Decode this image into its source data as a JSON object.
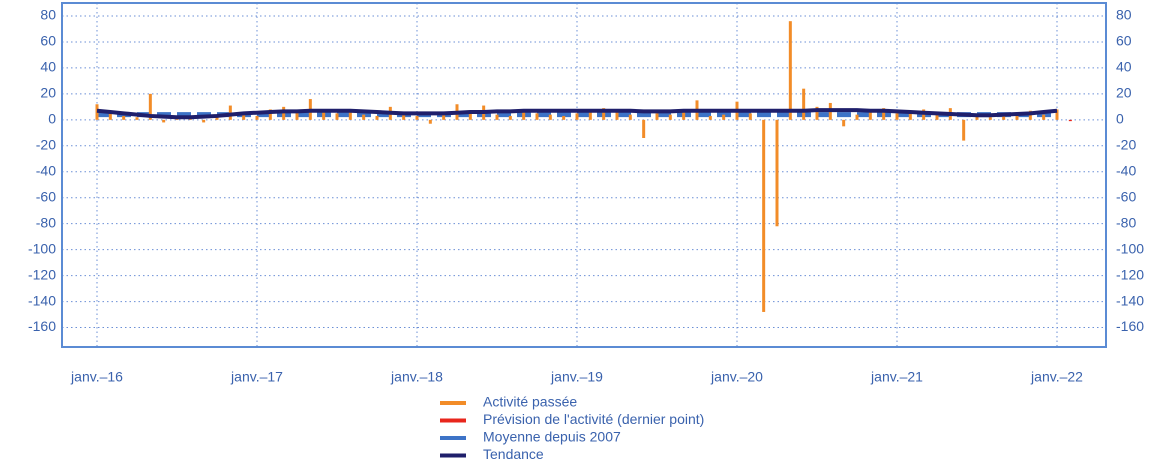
{
  "chart_data": {
    "type": "bar",
    "categories": [
      "janv.–16",
      null,
      null,
      null,
      null,
      null,
      null,
      null,
      null,
      null,
      null,
      null,
      "janv.–17",
      null,
      null,
      null,
      null,
      null,
      null,
      null,
      null,
      null,
      null,
      null,
      "janv.–18",
      null,
      null,
      null,
      null,
      null,
      null,
      null,
      null,
      null,
      null,
      null,
      "janv.–19",
      null,
      null,
      null,
      null,
      null,
      null,
      null,
      null,
      null,
      null,
      null,
      "janv.–20",
      null,
      null,
      null,
      null,
      null,
      null,
      null,
      null,
      null,
      null,
      null,
      "janv.–21",
      null,
      null,
      null,
      null,
      null,
      null,
      null,
      null,
      null,
      null,
      null,
      "janv.–22",
      null
    ],
    "series": [
      {
        "name": "Activité passée",
        "color": "#f28c28",
        "kind": "bar",
        "values": [
          12,
          5,
          3,
          2,
          20,
          -2,
          1,
          2,
          -2,
          3,
          11,
          4,
          3,
          8,
          10,
          6,
          16,
          6,
          5,
          8,
          4,
          3,
          10,
          5,
          3,
          -3,
          4,
          12,
          5,
          11,
          4,
          3,
          6,
          5,
          4,
          3,
          5,
          8,
          9,
          6,
          4,
          -14,
          5,
          4,
          6,
          15,
          3,
          4,
          14,
          5,
          -148,
          -82,
          76,
          24,
          10,
          13,
          -5,
          4,
          6,
          9,
          5,
          7,
          8,
          4,
          9,
          -16,
          3,
          2,
          3,
          3,
          7,
          4,
          8,
          null
        ]
      },
      {
        "name": "Prévision de l'activité (dernier point)",
        "color": "#e8261c",
        "kind": "bar",
        "values": [
          null,
          null,
          null,
          null,
          null,
          null,
          null,
          null,
          null,
          null,
          null,
          null,
          null,
          null,
          null,
          null,
          null,
          null,
          null,
          null,
          null,
          null,
          null,
          null,
          null,
          null,
          null,
          null,
          null,
          null,
          null,
          null,
          null,
          null,
          null,
          null,
          null,
          null,
          null,
          null,
          null,
          null,
          null,
          null,
          null,
          null,
          null,
          null,
          null,
          null,
          null,
          null,
          null,
          null,
          null,
          null,
          null,
          null,
          null,
          null,
          null,
          null,
          null,
          null,
          null,
          null,
          null,
          null,
          null,
          null,
          null,
          null,
          null,
          -1
        ]
      },
      {
        "name": "Moyenne depuis 2007",
        "color": "#3d73c7",
        "kind": "dashed",
        "values": [
          4,
          4,
          4,
          4,
          4,
          4,
          4,
          4,
          4,
          4,
          4,
          4,
          4,
          4,
          4,
          4,
          4,
          4,
          4,
          4,
          4,
          4,
          4,
          4,
          4,
          4,
          4,
          4,
          4,
          4,
          4,
          4,
          4,
          4,
          4,
          4,
          4,
          4,
          4,
          4,
          4,
          4,
          4,
          4,
          4,
          4,
          4,
          4,
          4,
          4,
          4,
          4,
          4,
          4,
          4,
          4,
          4,
          4,
          4,
          4,
          4,
          4,
          4,
          4,
          4,
          4,
          4,
          4,
          4,
          4,
          4,
          4,
          4,
          null
        ]
      },
      {
        "name": "Tendance",
        "color": "#1f1f6b",
        "kind": "line",
        "values": [
          7,
          6,
          5,
          4,
          3,
          2.5,
          2,
          2,
          2.5,
          3,
          4,
          5,
          5.5,
          6,
          6.5,
          6.5,
          7,
          7,
          7,
          7,
          6.5,
          6,
          5.5,
          5,
          5,
          5,
          5,
          5.5,
          6,
          6,
          6.5,
          6.5,
          7,
          7,
          7,
          7,
          7,
          7,
          7,
          7,
          7,
          6.5,
          6.5,
          6.5,
          7,
          7,
          7,
          7,
          7,
          7,
          7,
          7,
          7,
          7,
          7.5,
          7.5,
          7.5,
          7.5,
          7,
          7,
          6.5,
          6,
          5.5,
          5,
          4.5,
          4,
          3.5,
          3.5,
          4,
          4.5,
          5,
          6,
          7,
          null
        ]
      }
    ],
    "ylim": [
      -175,
      90
    ],
    "yticks": [
      -160,
      -140,
      -120,
      -100,
      -80,
      -60,
      -40,
      -20,
      0,
      20,
      40,
      60,
      80
    ],
    "grid": true
  }
}
